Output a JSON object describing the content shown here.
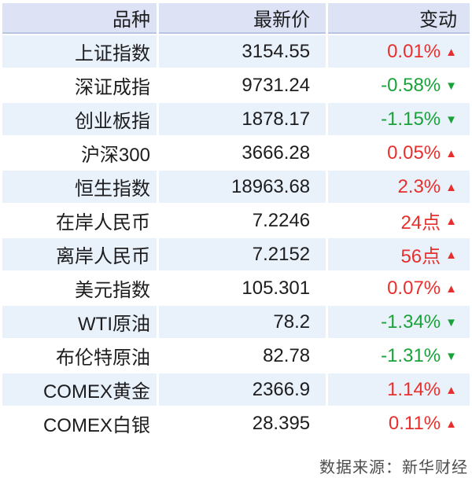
{
  "chart_data": {
    "type": "table",
    "columns": [
      "品种",
      "最新价",
      "变动"
    ],
    "rows": [
      {
        "name": "上证指数",
        "price": "3154.55",
        "change": "0.01%",
        "arrow": "▲",
        "direction": "up"
      },
      {
        "name": "深证成指",
        "price": "9731.24",
        "change": "-0.58%",
        "arrow": "▼",
        "direction": "down"
      },
      {
        "name": "创业板指",
        "price": "1878.17",
        "change": "-1.15%",
        "arrow": "▼",
        "direction": "down"
      },
      {
        "name": "沪深300",
        "price": "3666.28",
        "change": "0.05%",
        "arrow": "▲",
        "direction": "up"
      },
      {
        "name": "恒生指数",
        "price": "18963.68",
        "change": "2.3%",
        "arrow": "▲",
        "direction": "up"
      },
      {
        "name": "在岸人民币",
        "price": "7.2246",
        "change": "24点",
        "arrow": "▲",
        "direction": "up"
      },
      {
        "name": "离岸人民币",
        "price": "7.2152",
        "change": "56点",
        "arrow": "▲",
        "direction": "up"
      },
      {
        "name": "美元指数",
        "price": "105.301",
        "change": "0.07%",
        "arrow": "▲",
        "direction": "up"
      },
      {
        "name": "WTI原油",
        "price": "78.2",
        "change": "-1.34%",
        "arrow": "▼",
        "direction": "down"
      },
      {
        "name": "布伦特原油",
        "price": "82.78",
        "change": "-1.31%",
        "arrow": "▼",
        "direction": "down"
      },
      {
        "name": "COMEX黄金",
        "price": "2366.9",
        "change": "1.14%",
        "arrow": "▲",
        "direction": "up"
      },
      {
        "name": "COMEX白银",
        "price": "28.395",
        "change": "0.11%",
        "arrow": "▲",
        "direction": "up"
      }
    ],
    "legend": "none",
    "grid": "row-stripes"
  },
  "footer": {
    "source": "数据来源：新华财经"
  },
  "colors": {
    "up": "#e7302e",
    "down": "#1aa23a",
    "header_bg": "#dde3f5",
    "header_border": "#b6c6e0",
    "row_alt_bg": "#e9f1fb",
    "row_bg": "#ffffff",
    "text": "#1d1d1f",
    "source_text": "#4d4d4d",
    "page_bg": "#ffffff"
  }
}
